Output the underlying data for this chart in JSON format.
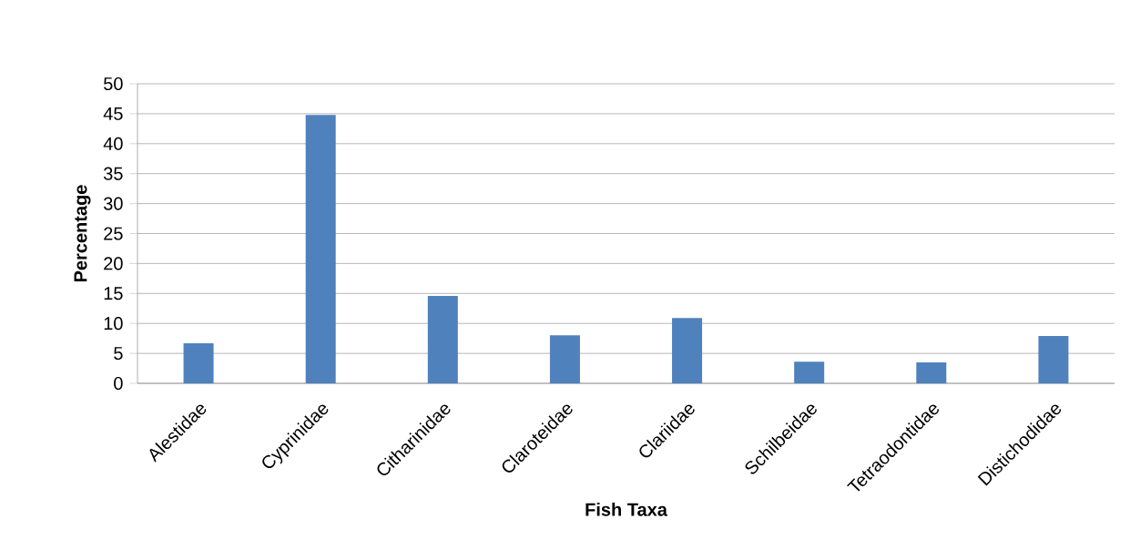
{
  "chart_data": {
    "type": "bar",
    "xlabel": "Fish Taxa",
    "ylabel": "Percentage",
    "categories": [
      "Alestidae",
      "Cyprinidae",
      "Citharinidae",
      "Claroteidae",
      "Clariidae",
      "Schilbeidae",
      "Tetraodontidae",
      "Distichodidae"
    ],
    "values": [
      6.7,
      44.8,
      14.6,
      8.0,
      10.9,
      3.6,
      3.5,
      7.9
    ],
    "color": "#4f81bd",
    "ylim": [
      0,
      50
    ],
    "yticks": [
      0,
      5,
      10,
      15,
      20,
      25,
      30,
      35,
      40,
      45,
      50
    ],
    "grid": "y"
  }
}
